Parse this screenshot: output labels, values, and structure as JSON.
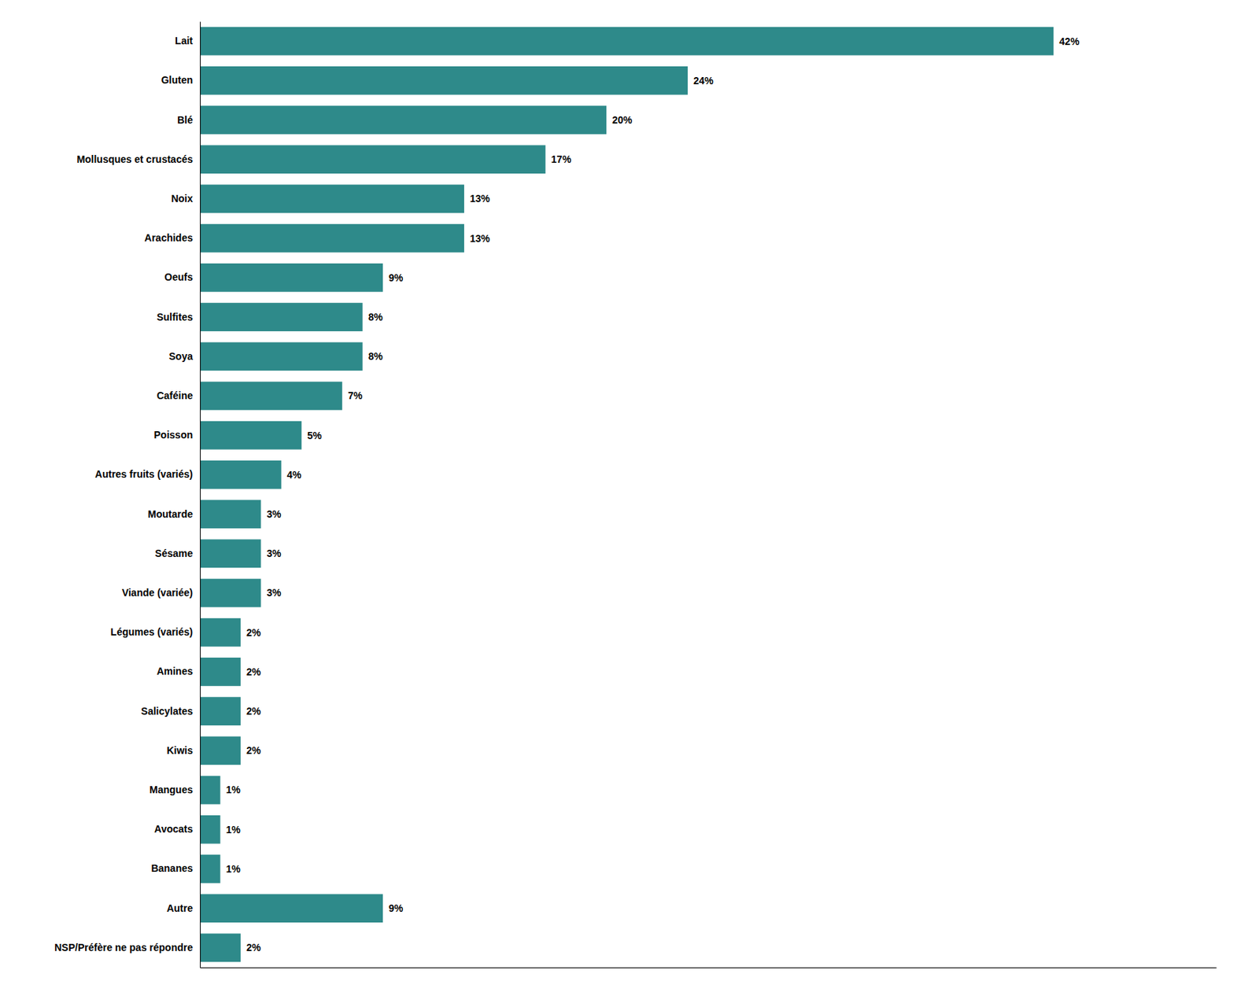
{
  "chart_data": {
    "type": "bar",
    "orientation": "horizontal",
    "categories": [
      "Lait",
      "Gluten",
      "Blé",
      "Mollusques et crustacés",
      "Noix",
      "Arachides",
      "Oeufs",
      "Sulfites",
      "Soya",
      "Caféine",
      "Poisson",
      "Autres fruits (variés)",
      "Moutarde",
      "Sésame",
      "Viande (variée)",
      "Légumes (variés)",
      "Amines",
      "Salicylates",
      "Kiwis",
      "Mangues",
      "Avocats",
      "Bananes",
      "Autre",
      "NSP/Préfère ne pas répondre"
    ],
    "values": [
      42,
      24,
      20,
      17,
      13,
      13,
      9,
      8,
      8,
      7,
      5,
      4,
      3,
      3,
      3,
      2,
      2,
      2,
      2,
      1,
      1,
      1,
      9,
      2
    ],
    "value_labels": [
      "42%",
      "24%",
      "20%",
      "17%",
      "13%",
      "13%",
      "9%",
      "8%",
      "8%",
      "7%",
      "5%",
      "4%",
      "3%",
      "3%",
      "3%",
      "2%",
      "2%",
      "2%",
      "2%",
      "1%",
      "1%",
      "1%",
      "9%",
      "2%"
    ],
    "color": "#2e8a8a",
    "xlim": [
      0,
      50
    ],
    "data_labels": true,
    "tick_labels": "y"
  }
}
